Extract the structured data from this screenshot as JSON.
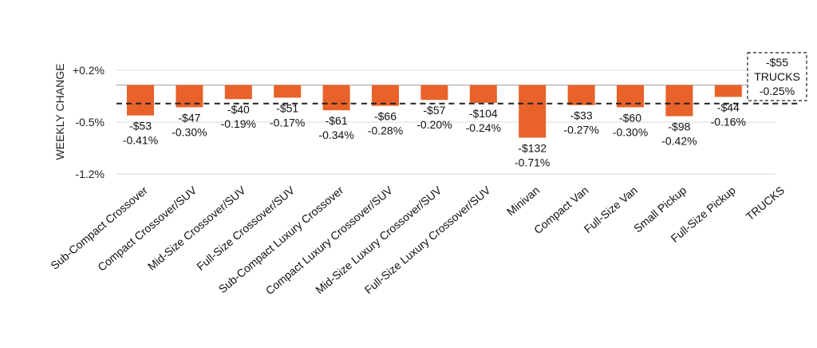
{
  "chart_data": {
    "type": "bar",
    "title": "",
    "xlabel": "",
    "ylabel": "WEEKLY CHANGE",
    "ylim": [
      -1.2,
      0.2
    ],
    "yticks": [
      "+0.2%",
      "-0.5%",
      "-1.2%"
    ],
    "ytick_values": [
      0.2,
      -0.5,
      -1.2
    ],
    "grid": true,
    "bar_color": "#E8622A",
    "reference_line": {
      "style": "dashed",
      "value": -0.25,
      "label": "TRUCKS"
    },
    "categories": [
      "Sub-Compact Crossover",
      "Compact Crossover/SUV",
      "Mid-Size Crossover/SUV",
      "Full-Size Crossover/SUV",
      "Sub-Compact Luxury Crossover",
      "Compact Luxury Crossover/SUV",
      "Mid-Size Luxury Crossover/SUV",
      "Full-Size Luxury Crossover/SUV",
      "Minivan",
      "Compact Van",
      "Full-Size Van",
      "Small Pickup",
      "Full-Size Pickup",
      "TRUCKS"
    ],
    "values": [
      -0.41,
      -0.3,
      -0.19,
      -0.17,
      -0.34,
      -0.28,
      -0.2,
      -0.24,
      -0.71,
      -0.27,
      -0.3,
      -0.42,
      -0.16,
      -0.25
    ],
    "dollar_labels": [
      "-$53",
      "-$47",
      "-$40",
      "-$51",
      "-$61",
      "-$66",
      "-$57",
      "-$104",
      "-$132",
      "-$33",
      "-$60",
      "-$98",
      "-$44",
      "-$55"
    ],
    "percent_labels": [
      "-0.41%",
      "-0.30%",
      "-0.19%",
      "-0.17%",
      "-0.34%",
      "-0.28%",
      "-0.20%",
      "-0.24%",
      "-0.71%",
      "-0.27%",
      "-0.30%",
      "-0.42%",
      "-0.16%",
      "-0.25%"
    ],
    "summary_box": {
      "dollar": "-$55",
      "name": "TRUCKS",
      "percent": "-0.25%"
    }
  }
}
